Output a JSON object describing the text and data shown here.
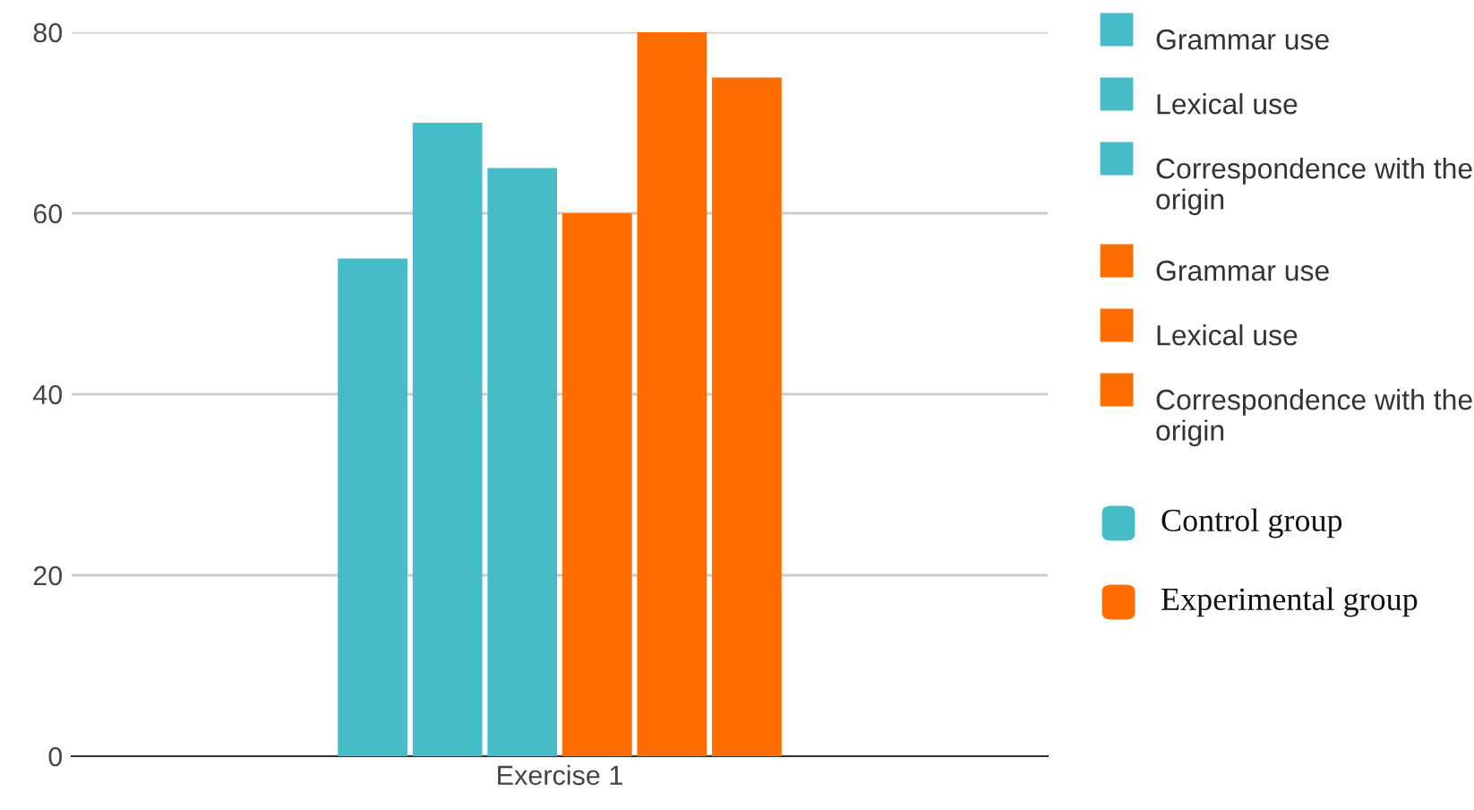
{
  "chart_data": {
    "type": "bar",
    "categories": [
      "Exercise 1"
    ],
    "series": [
      {
        "name": "Grammar use",
        "color": "#46bdc6",
        "values": [
          55
        ]
      },
      {
        "name": "Lexical use",
        "color": "#46bdc6",
        "values": [
          70
        ]
      },
      {
        "name": "Correspondence with the origin",
        "color": "#46bdc6",
        "values": [
          65
        ]
      },
      {
        "name": "Grammar use",
        "color": "#ff6d01",
        "values": [
          60
        ]
      },
      {
        "name": "Lexical use",
        "color": "#ff6d01",
        "values": [
          80
        ]
      },
      {
        "name": "Correspondence with the origin",
        "color": "#ff6d01",
        "values": [
          75
        ]
      }
    ],
    "ylim": [
      0,
      80
    ],
    "yticks": [
      0,
      20,
      40,
      60,
      80
    ],
    "grid": "y",
    "legend": "right",
    "annotations": [
      "Control group",
      "Experimental group"
    ]
  }
}
